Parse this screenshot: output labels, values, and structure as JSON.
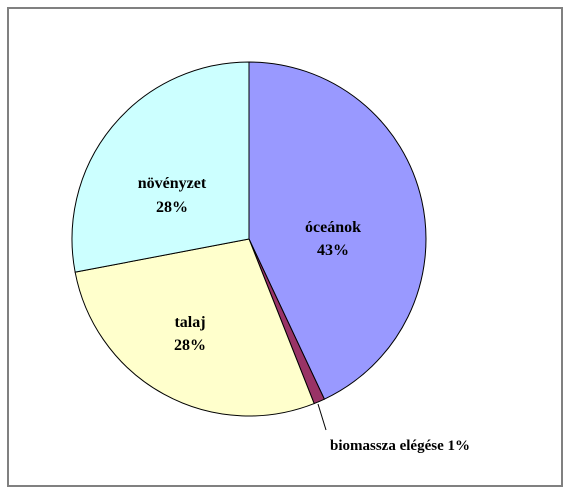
{
  "chart_data": {
    "type": "pie",
    "title": "",
    "slices": [
      {
        "label": "óceánok",
        "value": 43,
        "display": "43%",
        "color": "#9999ff"
      },
      {
        "label": "biomassza elégése",
        "value": 1,
        "display": "1%",
        "color": "#993366"
      },
      {
        "label": "talaj",
        "value": 28,
        "display": "28%",
        "color": "#ffffcc"
      },
      {
        "label": "növényzet",
        "value": 28,
        "display": "28%",
        "color": "#ccffff"
      }
    ],
    "start": "12 o'clock",
    "direction": "clockwise",
    "legend": "none"
  }
}
